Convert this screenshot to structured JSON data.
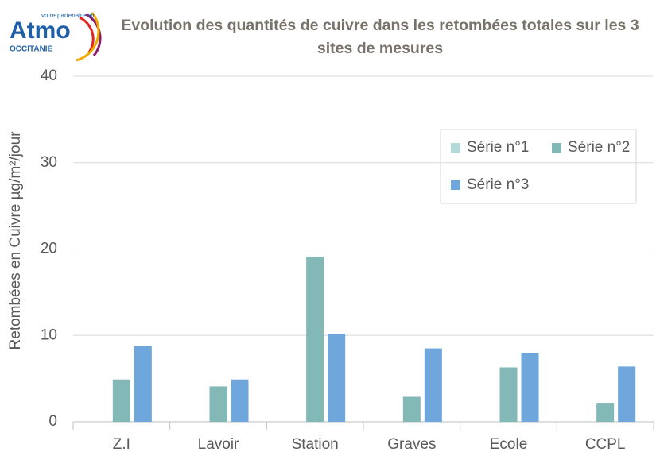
{
  "logo": {
    "name": "Atmo",
    "tagline": "votre partenaire air",
    "region": "OCCITANIE"
  },
  "chart_data": {
    "type": "bar",
    "title": "Evolution des quantités de cuivre dans les retombées totales sur les 3 sites de mesures",
    "y_label": "Retombées en Cuivre µg/m²/jour",
    "categories": [
      "Z.I",
      "Lavoir",
      "Station",
      "Graves",
      "Ecole",
      "CCPL"
    ],
    "series": [
      {
        "name": "Série n°1",
        "color": "#b3d9d9",
        "values": [
          null,
          null,
          null,
          null,
          null,
          null
        ]
      },
      {
        "name": "Série n°2",
        "color": "#82b8b6",
        "values": [
          4.9,
          4.1,
          19.1,
          2.9,
          6.3,
          2.2
        ]
      },
      {
        "name": "Série n°3",
        "color": "#6fa6db",
        "values": [
          8.8,
          4.9,
          10.2,
          8.5,
          8.0,
          6.4
        ]
      }
    ],
    "ylim": [
      0,
      40
    ],
    "yticks": [
      0,
      10,
      20,
      30,
      40
    ],
    "grid": true,
    "legend": "upper right"
  }
}
